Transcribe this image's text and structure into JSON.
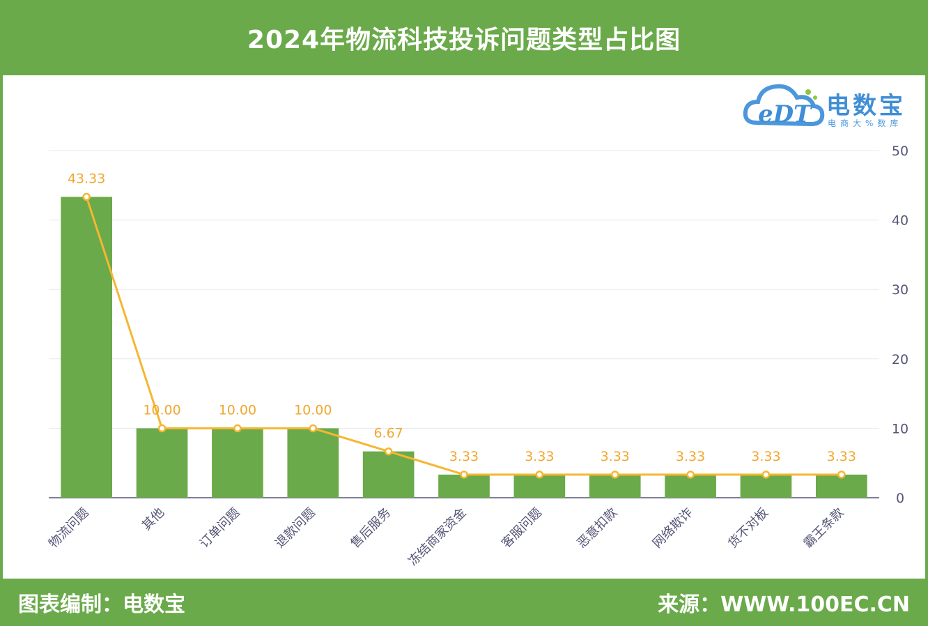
{
  "header": {
    "title": "2024年物流科技投诉问题类型占比图"
  },
  "logo": {
    "name": "电数宝",
    "subtitle": "电商大%数库",
    "mark": "eDT"
  },
  "footer": {
    "left": "图表编制：电数宝",
    "right": "来源：WWW.100EC.CN"
  },
  "colors": {
    "bar": "#6aaa4a",
    "line": "#f5b731",
    "label": "#f0a830",
    "axis": "#555577",
    "grid": "#e8e8ee"
  },
  "chart_data": {
    "type": "bar",
    "categories": [
      "物流问题",
      "其他",
      "订单问题",
      "退款问题",
      "售后服务",
      "冻结商家资金",
      "客服问题",
      "恶意扣款",
      "网络欺诈",
      "货不对板",
      "霸王条款"
    ],
    "values": [
      43.33,
      10.0,
      10.0,
      10.0,
      6.67,
      3.33,
      3.33,
      3.33,
      3.33,
      3.33,
      3.33
    ],
    "value_labels": [
      "43.33",
      "10.00",
      "10.00",
      "10.00",
      "6.67",
      "3.33",
      "3.33",
      "3.33",
      "3.33",
      "3.33",
      "3.33"
    ],
    "overlay_line": true,
    "ylim": [
      0,
      50
    ],
    "yticks": [
      "0",
      "10",
      "20",
      "30",
      "40",
      "50"
    ],
    "y_axis_side": "right",
    "grid": true
  }
}
